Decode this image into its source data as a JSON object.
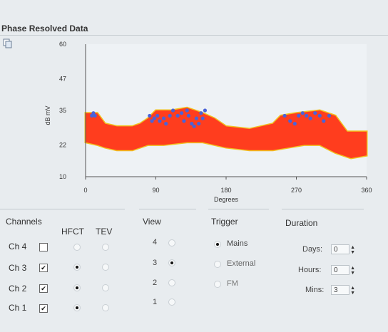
{
  "title": "Phase Resolved Data",
  "icons": {
    "copy": "copy-icon"
  },
  "chart_data": {
    "type": "scatter",
    "title": "",
    "xlabel": "Degrees",
    "ylabel": "dB mV",
    "xlim": [
      0,
      360
    ],
    "ylim": [
      10,
      60
    ],
    "x_ticks": [
      "0",
      "90",
      "180",
      "270",
      "360"
    ],
    "y_ticks": [
      "60",
      "47",
      "35",
      "22",
      "10"
    ],
    "grid": false,
    "band_color": "#ff3d1e",
    "band_edge_color": "#f2c01e",
    "point_color": "#4a63d8",
    "band_upper": [
      [
        0,
        34
      ],
      [
        15,
        34
      ],
      [
        25,
        30
      ],
      [
        40,
        29
      ],
      [
        60,
        29
      ],
      [
        70,
        30
      ],
      [
        80,
        32
      ],
      [
        90,
        35
      ],
      [
        110,
        35
      ],
      [
        130,
        36
      ],
      [
        150,
        34
      ],
      [
        165,
        32
      ],
      [
        180,
        29
      ],
      [
        210,
        28
      ],
      [
        240,
        30
      ],
      [
        250,
        33
      ],
      [
        270,
        34
      ],
      [
        300,
        35
      ],
      [
        320,
        33
      ],
      [
        335,
        27
      ],
      [
        360,
        27
      ]
    ],
    "band_lower": [
      [
        0,
        23
      ],
      [
        15,
        22
      ],
      [
        25,
        21
      ],
      [
        40,
        20
      ],
      [
        60,
        20
      ],
      [
        80,
        22
      ],
      [
        100,
        22
      ],
      [
        130,
        23
      ],
      [
        150,
        23
      ],
      [
        180,
        21
      ],
      [
        210,
        20
      ],
      [
        240,
        20
      ],
      [
        260,
        21
      ],
      [
        280,
        22
      ],
      [
        300,
        22
      ],
      [
        320,
        19
      ],
      [
        340,
        17
      ],
      [
        360,
        18
      ]
    ],
    "points": [
      {
        "x": 8,
        "y": 33
      },
      {
        "x": 10,
        "y": 34
      },
      {
        "x": 12,
        "y": 33
      },
      {
        "x": 82,
        "y": 33
      },
      {
        "x": 85,
        "y": 31
      },
      {
        "x": 88,
        "y": 32
      },
      {
        "x": 92,
        "y": 33
      },
      {
        "x": 95,
        "y": 31
      },
      {
        "x": 100,
        "y": 32
      },
      {
        "x": 103,
        "y": 30
      },
      {
        "x": 108,
        "y": 33
      },
      {
        "x": 112,
        "y": 35
      },
      {
        "x": 118,
        "y": 33
      },
      {
        "x": 123,
        "y": 34
      },
      {
        "x": 126,
        "y": 31
      },
      {
        "x": 130,
        "y": 35
      },
      {
        "x": 132,
        "y": 33
      },
      {
        "x": 136,
        "y": 30
      },
      {
        "x": 139,
        "y": 29
      },
      {
        "x": 142,
        "y": 32
      },
      {
        "x": 145,
        "y": 30
      },
      {
        "x": 148,
        "y": 34
      },
      {
        "x": 150,
        "y": 32
      },
      {
        "x": 153,
        "y": 35
      },
      {
        "x": 255,
        "y": 33
      },
      {
        "x": 262,
        "y": 31
      },
      {
        "x": 268,
        "y": 30
      },
      {
        "x": 273,
        "y": 33
      },
      {
        "x": 278,
        "y": 34
      },
      {
        "x": 283,
        "y": 33
      },
      {
        "x": 288,
        "y": 32
      },
      {
        "x": 294,
        "y": 34
      },
      {
        "x": 300,
        "y": 33
      },
      {
        "x": 305,
        "y": 31
      },
      {
        "x": 312,
        "y": 33
      }
    ]
  },
  "channels": {
    "header": "Channels",
    "hfct_label": "HFCT",
    "tev_label": "TEV",
    "rows": [
      {
        "label": "Ch 4",
        "checked": false,
        "hfct": false,
        "tev": false
      },
      {
        "label": "Ch 3",
        "checked": true,
        "hfct": true,
        "tev": false
      },
      {
        "label": "Ch 2",
        "checked": true,
        "hfct": true,
        "tev": false
      },
      {
        "label": "Ch 1",
        "checked": true,
        "hfct": true,
        "tev": false
      }
    ]
  },
  "view": {
    "header": "View",
    "options": [
      "4",
      "3",
      "2",
      "1"
    ],
    "selected": "3"
  },
  "trigger": {
    "header": "Trigger",
    "options": [
      "Mains",
      "External",
      "FM"
    ],
    "selected": "Mains"
  },
  "duration": {
    "header": "Duration",
    "fields": [
      {
        "label": "Days:",
        "value": "0"
      },
      {
        "label": "Hours:",
        "value": "0"
      },
      {
        "label": "Mins:",
        "value": "3"
      }
    ]
  }
}
